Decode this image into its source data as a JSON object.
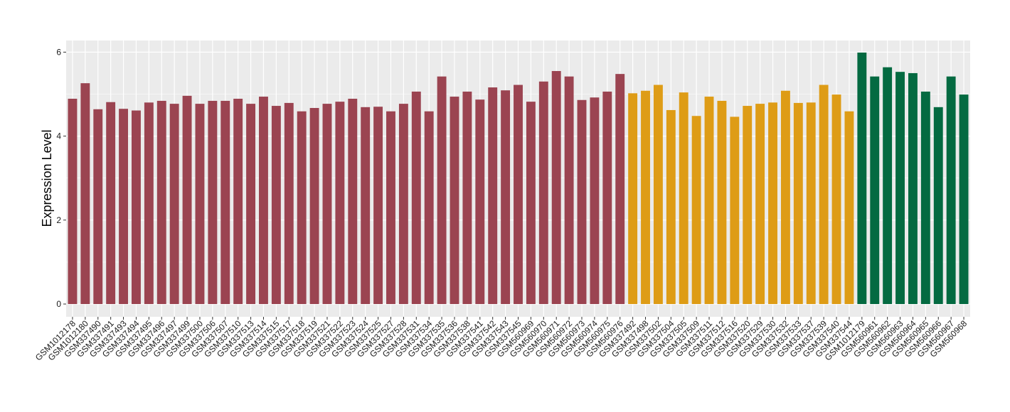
{
  "chart_data": {
    "type": "bar",
    "title": "",
    "xlabel": "",
    "ylabel": "Expression Level",
    "ylim": [
      0,
      6.2
    ],
    "yticks": [
      0,
      2,
      4,
      6
    ],
    "grid": true,
    "legend": "none",
    "colors": {
      "group1": "#9B4451",
      "group2": "#DE9C16",
      "group3": "#046A41",
      "panel_bg": "#EBEBEB",
      "grid": "#FFFFFF"
    },
    "categories": [
      "GSM1012178",
      "GSM1012180",
      "GSM337490",
      "GSM337491",
      "GSM337493",
      "GSM337494",
      "GSM337495",
      "GSM337496",
      "GSM337497",
      "GSM337499",
      "GSM337500",
      "GSM337506",
      "GSM337507",
      "GSM337510",
      "GSM337513",
      "GSM337514",
      "GSM337515",
      "GSM337517",
      "GSM337518",
      "GSM337519",
      "GSM337521",
      "GSM337522",
      "GSM337523",
      "GSM337524",
      "GSM337525",
      "GSM337527",
      "GSM337528",
      "GSM337531",
      "GSM337534",
      "GSM337535",
      "GSM337536",
      "GSM337538",
      "GSM337541",
      "GSM337542",
      "GSM337543",
      "GSM337545",
      "GSM560969",
      "GSM560970",
      "GSM560971",
      "GSM560972",
      "GSM560973",
      "GSM560974",
      "GSM560975",
      "GSM560976",
      "GSM337492",
      "GSM337498",
      "GSM337502",
      "GSM337504",
      "GSM337505",
      "GSM337509",
      "GSM337511",
      "GSM337512",
      "GSM337516",
      "GSM337520",
      "GSM337529",
      "GSM337530",
      "GSM337532",
      "GSM337533",
      "GSM337537",
      "GSM337539",
      "GSM337540",
      "GSM337544",
      "GSM1012179",
      "GSM560961",
      "GSM560962",
      "GSM560963",
      "GSM560964",
      "GSM560965",
      "GSM560966",
      "GSM560967",
      "GSM560968"
    ],
    "values": [
      4.89,
      5.26,
      4.64,
      4.81,
      4.65,
      4.61,
      4.8,
      4.84,
      4.77,
      4.96,
      4.77,
      4.84,
      4.84,
      4.89,
      4.77,
      4.94,
      4.72,
      4.79,
      4.59,
      4.67,
      4.77,
      4.82,
      4.89,
      4.69,
      4.7,
      4.59,
      4.77,
      5.06,
      4.59,
      5.42,
      4.94,
      5.06,
      4.87,
      5.16,
      5.09,
      5.22,
      4.82,
      5.3,
      5.55,
      5.42,
      4.86,
      4.92,
      5.06,
      5.48,
      5.02,
      5.08,
      5.22,
      4.62,
      5.04,
      4.48,
      4.94,
      4.84,
      4.46,
      4.72,
      4.77,
      4.8,
      5.08,
      4.79,
      4.8,
      5.22,
      4.99,
      4.59,
      5.99,
      5.42,
      5.64,
      5.53,
      5.5,
      5.06,
      4.69,
      5.42,
      4.99
    ],
    "groups": [
      {
        "color_key": "group1",
        "count": 44
      },
      {
        "color_key": "group2",
        "count": 18
      },
      {
        "color_key": "group3",
        "count": 9
      }
    ]
  }
}
